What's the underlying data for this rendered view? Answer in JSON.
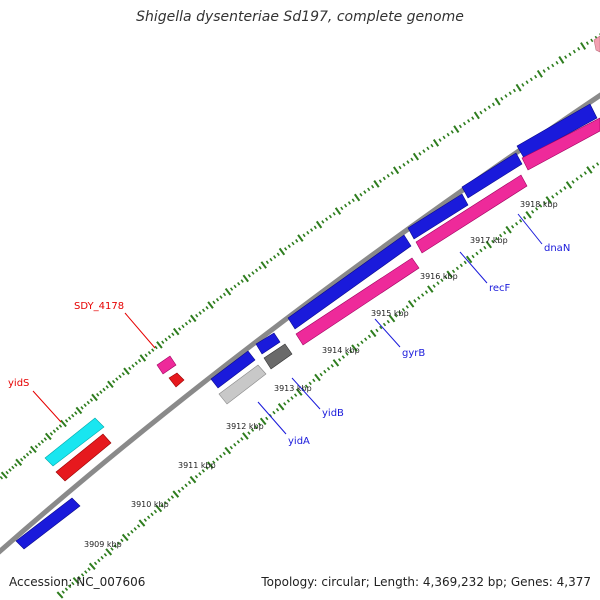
{
  "title": "Shigella dysenteriae Sd197, complete genome",
  "footer": {
    "accession": "Accession: NC_007606",
    "summary": "Topology: circular; Length: 4,369,232 bp; Genes: 4,377"
  },
  "colors": {
    "forward_gene": "#1a1adb",
    "reverse_gene": "#ee2a9a",
    "highlight_red": "#e6191e",
    "highlight_cyan": "#19e6f0",
    "grey_gene": "#6a6a6a",
    "light_grey_gene": "#c8c8c8",
    "backbone": "#888888",
    "ticks": "#2e7d1e",
    "label_blue": "#1a1adb",
    "label_red": "#e60000"
  },
  "scale_labels": [
    "3909 kbp",
    "3910 kbp",
    "3911 kbp",
    "3912 kbp",
    "3913 kbp",
    "3914 kbp",
    "3915 kbp",
    "3916 kbp",
    "3917 kbp",
    "3918 kbp"
  ],
  "gene_labels": {
    "yidS": "yidS",
    "sdy": "SDY_4178",
    "yidA": "yidA",
    "yidB": "yidB",
    "gyrB": "gyrB",
    "recF": "recF",
    "dnaN": "dnaN"
  }
}
